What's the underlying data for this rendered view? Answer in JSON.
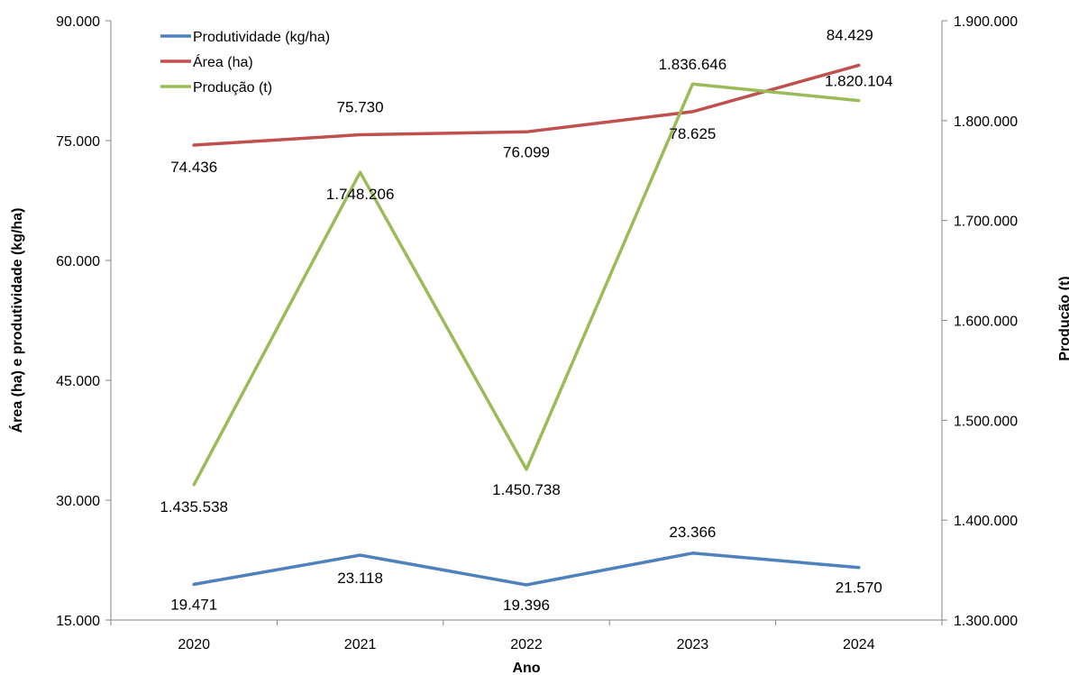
{
  "chart_data": {
    "type": "line",
    "title": "",
    "xlabel": "Ano",
    "ylabel": "Área (ha) e produtividade (kg/ha)",
    "y2label": "Produção (t)",
    "categories": [
      "2020",
      "2021",
      "2022",
      "2023",
      "2024"
    ],
    "ylim": [
      15000,
      90000
    ],
    "y2lim": [
      1300000,
      1900000
    ],
    "yticks": [
      "15.000",
      "30.000",
      "45.000",
      "60.000",
      "75.000",
      "90.000"
    ],
    "y2ticks": [
      "1.300.000",
      "1.400.000",
      "1.500.000",
      "1.600.000",
      "1.700.000",
      "1.800.000",
      "1.900.000"
    ],
    "grid": false,
    "legend_position": "top-left",
    "series": [
      {
        "name": "Produtividade (kg/ha)",
        "axis": "left",
        "color": "#4F81BD",
        "values": [
          19471,
          23118,
          19396,
          23366,
          21570
        ],
        "labels": [
          "19.471",
          "23.118",
          "19.396",
          "23.366",
          "21.570"
        ]
      },
      {
        "name": "Área (ha)",
        "axis": "left",
        "color": "#C0504D",
        "values": [
          74436,
          75730,
          76099,
          78625,
          84429
        ],
        "labels": [
          "74.436",
          "75.730",
          "76.099",
          "78.625",
          "84.429"
        ]
      },
      {
        "name": "Produção (t)",
        "axis": "right",
        "color": "#9BBB59",
        "values": [
          1435538,
          1748206,
          1450738,
          1836646,
          1820104
        ],
        "labels": [
          "1.435.538",
          "1.748.206",
          "1.450.738",
          "1.836.646",
          "1.820.104"
        ]
      }
    ]
  }
}
